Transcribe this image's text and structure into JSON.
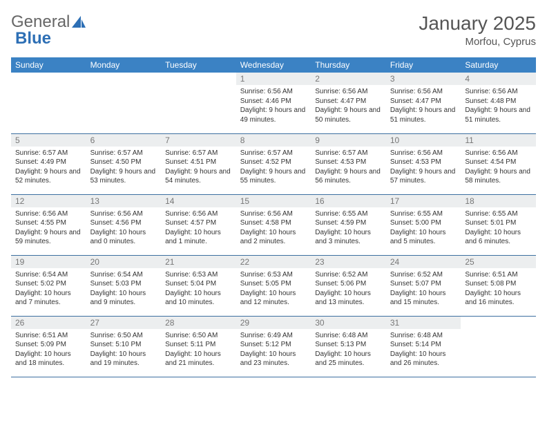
{
  "logo": {
    "textGray": "General",
    "textBlue": "Blue"
  },
  "title": "January 2025",
  "location": "Morfou, Cyprus",
  "colors": {
    "header_bg": "#3b82c4",
    "header_text": "#ffffff",
    "daynum_bg": "#eceeef",
    "daynum_text": "#777777",
    "row_border": "#3b6ea0",
    "body_text": "#333333",
    "logo_gray": "#666666",
    "logo_blue": "#2d6fb5"
  },
  "weekdays": [
    "Sunday",
    "Monday",
    "Tuesday",
    "Wednesday",
    "Thursday",
    "Friday",
    "Saturday"
  ],
  "weeks": [
    [
      {
        "n": "",
        "sr": "",
        "ss": "",
        "dl": ""
      },
      {
        "n": "",
        "sr": "",
        "ss": "",
        "dl": ""
      },
      {
        "n": "",
        "sr": "",
        "ss": "",
        "dl": ""
      },
      {
        "n": "1",
        "sr": "Sunrise: 6:56 AM",
        "ss": "Sunset: 4:46 PM",
        "dl": "Daylight: 9 hours and 49 minutes."
      },
      {
        "n": "2",
        "sr": "Sunrise: 6:56 AM",
        "ss": "Sunset: 4:47 PM",
        "dl": "Daylight: 9 hours and 50 minutes."
      },
      {
        "n": "3",
        "sr": "Sunrise: 6:56 AM",
        "ss": "Sunset: 4:47 PM",
        "dl": "Daylight: 9 hours and 51 minutes."
      },
      {
        "n": "4",
        "sr": "Sunrise: 6:56 AM",
        "ss": "Sunset: 4:48 PM",
        "dl": "Daylight: 9 hours and 51 minutes."
      }
    ],
    [
      {
        "n": "5",
        "sr": "Sunrise: 6:57 AM",
        "ss": "Sunset: 4:49 PM",
        "dl": "Daylight: 9 hours and 52 minutes."
      },
      {
        "n": "6",
        "sr": "Sunrise: 6:57 AM",
        "ss": "Sunset: 4:50 PM",
        "dl": "Daylight: 9 hours and 53 minutes."
      },
      {
        "n": "7",
        "sr": "Sunrise: 6:57 AM",
        "ss": "Sunset: 4:51 PM",
        "dl": "Daylight: 9 hours and 54 minutes."
      },
      {
        "n": "8",
        "sr": "Sunrise: 6:57 AM",
        "ss": "Sunset: 4:52 PM",
        "dl": "Daylight: 9 hours and 55 minutes."
      },
      {
        "n": "9",
        "sr": "Sunrise: 6:57 AM",
        "ss": "Sunset: 4:53 PM",
        "dl": "Daylight: 9 hours and 56 minutes."
      },
      {
        "n": "10",
        "sr": "Sunrise: 6:56 AM",
        "ss": "Sunset: 4:53 PM",
        "dl": "Daylight: 9 hours and 57 minutes."
      },
      {
        "n": "11",
        "sr": "Sunrise: 6:56 AM",
        "ss": "Sunset: 4:54 PM",
        "dl": "Daylight: 9 hours and 58 minutes."
      }
    ],
    [
      {
        "n": "12",
        "sr": "Sunrise: 6:56 AM",
        "ss": "Sunset: 4:55 PM",
        "dl": "Daylight: 9 hours and 59 minutes."
      },
      {
        "n": "13",
        "sr": "Sunrise: 6:56 AM",
        "ss": "Sunset: 4:56 PM",
        "dl": "Daylight: 10 hours and 0 minutes."
      },
      {
        "n": "14",
        "sr": "Sunrise: 6:56 AM",
        "ss": "Sunset: 4:57 PM",
        "dl": "Daylight: 10 hours and 1 minute."
      },
      {
        "n": "15",
        "sr": "Sunrise: 6:56 AM",
        "ss": "Sunset: 4:58 PM",
        "dl": "Daylight: 10 hours and 2 minutes."
      },
      {
        "n": "16",
        "sr": "Sunrise: 6:55 AM",
        "ss": "Sunset: 4:59 PM",
        "dl": "Daylight: 10 hours and 3 minutes."
      },
      {
        "n": "17",
        "sr": "Sunrise: 6:55 AM",
        "ss": "Sunset: 5:00 PM",
        "dl": "Daylight: 10 hours and 5 minutes."
      },
      {
        "n": "18",
        "sr": "Sunrise: 6:55 AM",
        "ss": "Sunset: 5:01 PM",
        "dl": "Daylight: 10 hours and 6 minutes."
      }
    ],
    [
      {
        "n": "19",
        "sr": "Sunrise: 6:54 AM",
        "ss": "Sunset: 5:02 PM",
        "dl": "Daylight: 10 hours and 7 minutes."
      },
      {
        "n": "20",
        "sr": "Sunrise: 6:54 AM",
        "ss": "Sunset: 5:03 PM",
        "dl": "Daylight: 10 hours and 9 minutes."
      },
      {
        "n": "21",
        "sr": "Sunrise: 6:53 AM",
        "ss": "Sunset: 5:04 PM",
        "dl": "Daylight: 10 hours and 10 minutes."
      },
      {
        "n": "22",
        "sr": "Sunrise: 6:53 AM",
        "ss": "Sunset: 5:05 PM",
        "dl": "Daylight: 10 hours and 12 minutes."
      },
      {
        "n": "23",
        "sr": "Sunrise: 6:52 AM",
        "ss": "Sunset: 5:06 PM",
        "dl": "Daylight: 10 hours and 13 minutes."
      },
      {
        "n": "24",
        "sr": "Sunrise: 6:52 AM",
        "ss": "Sunset: 5:07 PM",
        "dl": "Daylight: 10 hours and 15 minutes."
      },
      {
        "n": "25",
        "sr": "Sunrise: 6:51 AM",
        "ss": "Sunset: 5:08 PM",
        "dl": "Daylight: 10 hours and 16 minutes."
      }
    ],
    [
      {
        "n": "26",
        "sr": "Sunrise: 6:51 AM",
        "ss": "Sunset: 5:09 PM",
        "dl": "Daylight: 10 hours and 18 minutes."
      },
      {
        "n": "27",
        "sr": "Sunrise: 6:50 AM",
        "ss": "Sunset: 5:10 PM",
        "dl": "Daylight: 10 hours and 19 minutes."
      },
      {
        "n": "28",
        "sr": "Sunrise: 6:50 AM",
        "ss": "Sunset: 5:11 PM",
        "dl": "Daylight: 10 hours and 21 minutes."
      },
      {
        "n": "29",
        "sr": "Sunrise: 6:49 AM",
        "ss": "Sunset: 5:12 PM",
        "dl": "Daylight: 10 hours and 23 minutes."
      },
      {
        "n": "30",
        "sr": "Sunrise: 6:48 AM",
        "ss": "Sunset: 5:13 PM",
        "dl": "Daylight: 10 hours and 25 minutes."
      },
      {
        "n": "31",
        "sr": "Sunrise: 6:48 AM",
        "ss": "Sunset: 5:14 PM",
        "dl": "Daylight: 10 hours and 26 minutes."
      },
      {
        "n": "",
        "sr": "",
        "ss": "",
        "dl": ""
      }
    ]
  ]
}
